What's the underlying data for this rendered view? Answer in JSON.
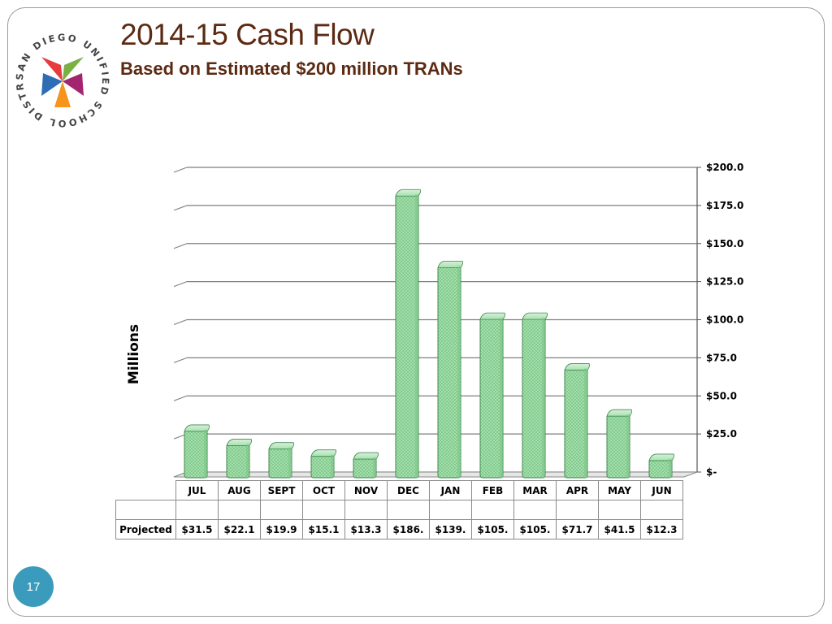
{
  "slide": {
    "title": "2014-15 Cash Flow",
    "subtitle": "Based on Estimated $200 million TRANs",
    "page_number": "17"
  },
  "logo": {
    "text": "SAN DIEGO UNIFIED SCHOOL DISTRICT",
    "colors": [
      "#e63c3c",
      "#7bb043",
      "#f7941d",
      "#2e6db4",
      "#a3256f"
    ]
  },
  "chart_data": {
    "type": "bar",
    "ylabel": "Millions",
    "ylim": [
      0,
      200
    ],
    "y_ticks": [
      0,
      25,
      50,
      75,
      100,
      125,
      150,
      175,
      200
    ],
    "y_tick_labels": [
      "$-",
      "$25.0",
      "$50.0",
      "$75.0",
      "$100.0",
      "$125.0",
      "$150.0",
      "$175.0",
      "$200.0"
    ],
    "categories": [
      "JUL",
      "AUG",
      "SEPT",
      "OCT",
      "NOV",
      "DEC",
      "JAN",
      "FEB",
      "MAR",
      "APR",
      "MAY",
      "JUN"
    ],
    "series": [
      {
        "name": "Projected",
        "values": [
          31.5,
          22.1,
          19.9,
          15.1,
          13.3,
          186,
          139,
          105,
          105,
          71.7,
          41.5,
          12.3
        ],
        "value_labels": [
          "$31.5",
          "$22.1",
          "$19.9",
          "$15.1",
          "$13.3",
          "$186.",
          "$139.",
          "$105.",
          "$105.",
          "$71.7",
          "$41.5",
          "$12.3"
        ]
      }
    ],
    "grid": true,
    "y_axis_position": "right",
    "bar_color": "#9ad9a3",
    "bar_edge_color": "#3f8a4d"
  }
}
